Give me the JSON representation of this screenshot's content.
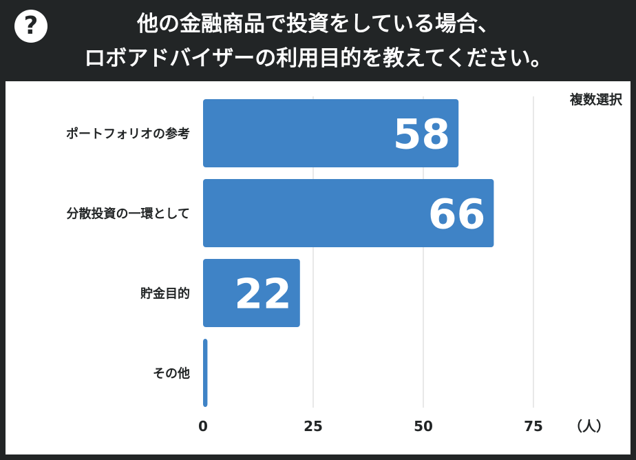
{
  "header": {
    "icon": "question-circle-icon",
    "title_line1": "他の金融商品で投資をしている場合、",
    "title_line2": "ロボアドバイザーの利用目的を教えてください。"
  },
  "note": "複数選択",
  "colors": {
    "bar": "#3f83c6",
    "background": "#222526",
    "panel": "#ffffff",
    "grid": "#d0d0d0"
  },
  "chart_data": {
    "type": "bar",
    "orientation": "horizontal",
    "categories": [
      "ポートフォリオの参考",
      "分散投資の一環として",
      "貯金目的",
      "その他"
    ],
    "values": [
      58,
      66,
      22,
      1
    ],
    "value_labels": [
      "58",
      "66",
      "22",
      ""
    ],
    "xlim": [
      0,
      82
    ],
    "xticks": [
      0,
      25,
      50,
      75
    ],
    "xunit": "（人）",
    "grid": true
  }
}
